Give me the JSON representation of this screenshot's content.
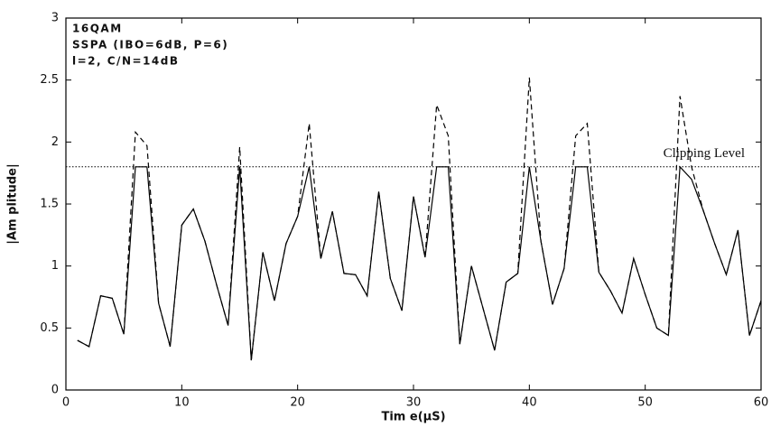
{
  "chart_data": {
    "type": "line",
    "x_label": "Tim e(μS)",
    "y_label": "|Am plitude|",
    "annotations": [
      "16QAM",
      "SSPA (IBO=6dB, P=6)",
      "l=2, C/N=14dB"
    ],
    "clip_label": "Clipping Level",
    "clip_level": 1.8,
    "x": [
      1,
      2,
      3,
      4,
      5,
      6,
      7,
      8,
      9,
      10,
      11,
      12,
      13,
      14,
      15,
      16,
      17,
      18,
      19,
      20,
      21,
      22,
      23,
      24,
      25,
      26,
      27,
      28,
      29,
      30,
      31,
      32,
      33,
      34,
      35,
      36,
      37,
      38,
      39,
      40,
      41,
      42,
      43,
      44,
      45,
      46,
      47,
      48,
      49,
      50,
      51,
      52,
      53,
      54,
      55,
      56,
      57,
      58,
      59,
      60
    ],
    "series": [
      {
        "style": "solid",
        "color": "#000000",
        "values": [
          0.4,
          0.35,
          0.76,
          0.74,
          0.45,
          1.8,
          1.8,
          0.7,
          0.35,
          1.33,
          1.46,
          1.2,
          0.85,
          0.52,
          1.8,
          0.24,
          1.11,
          0.72,
          1.18,
          1.4,
          1.8,
          1.06,
          1.44,
          0.94,
          0.93,
          0.76,
          1.6,
          0.9,
          0.64,
          1.56,
          1.07,
          1.8,
          1.8,
          0.37,
          1.0,
          0.66,
          0.32,
          0.87,
          0.94,
          1.8,
          1.2,
          0.69,
          0.98,
          1.8,
          1.8,
          0.95,
          0.8,
          0.62,
          1.06,
          0.77,
          0.5,
          0.44,
          1.8,
          1.7,
          1.45,
          1.18,
          0.93,
          1.29,
          0.44,
          0.72
        ]
      },
      {
        "style": "dashed",
        "color": "#000000",
        "values": [
          0.4,
          0.35,
          0.76,
          0.74,
          0.45,
          2.08,
          1.97,
          0.7,
          0.35,
          1.33,
          1.46,
          1.2,
          0.85,
          0.52,
          1.96,
          0.24,
          1.11,
          0.72,
          1.18,
          1.4,
          2.15,
          1.06,
          1.44,
          0.94,
          0.93,
          0.76,
          1.6,
          0.9,
          0.64,
          1.56,
          1.07,
          2.3,
          2.05,
          0.37,
          1.0,
          0.66,
          0.32,
          0.87,
          0.94,
          2.52,
          1.2,
          0.69,
          0.98,
          2.05,
          2.15,
          0.95,
          0.8,
          0.62,
          1.06,
          0.77,
          0.5,
          0.44,
          2.37,
          1.8,
          1.45,
          1.18,
          0.93,
          1.29,
          0.44,
          0.72
        ]
      }
    ],
    "xlim": [
      0,
      60
    ],
    "xticks": [
      0,
      10,
      20,
      30,
      40,
      50,
      60
    ],
    "ylim": [
      0,
      3
    ],
    "yticks": [
      0,
      0.5,
      1,
      1.5,
      2,
      2.5,
      3
    ]
  }
}
